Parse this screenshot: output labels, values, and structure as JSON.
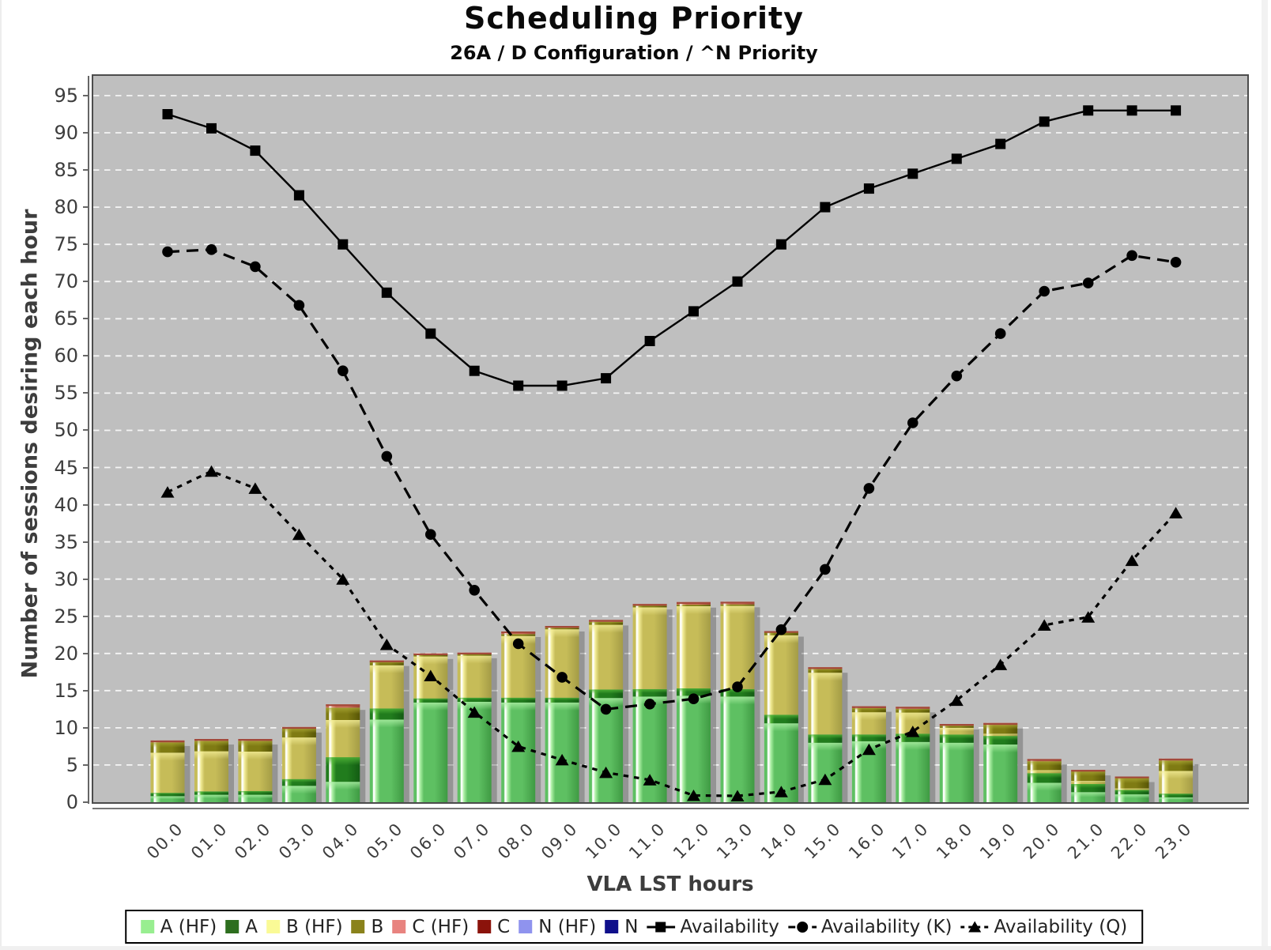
{
  "title": "Scheduling Priority",
  "subtitle": "26A / D Configuration / ^N Priority",
  "y_axis": {
    "label": "Number of sessions desiring each hour",
    "ticks": [
      "0",
      "5",
      "10",
      "15",
      "20",
      "25",
      "30",
      "35",
      "40",
      "45",
      "50",
      "55",
      "60",
      "65",
      "70",
      "75",
      "80",
      "85",
      "90",
      "95"
    ],
    "tick_step": 5,
    "range": [
      0,
      97.6
    ]
  },
  "x_axis": {
    "label": "VLA LST hours",
    "categories": [
      "00.0",
      "01.0",
      "02.0",
      "03.0",
      "04.0",
      "05.0",
      "06.0",
      "07.0",
      "08.0",
      "09.0",
      "10.0",
      "11.0",
      "12.0",
      "13.0",
      "14.0",
      "15.0",
      "16.0",
      "17.0",
      "18.0",
      "19.0",
      "20.0",
      "21.0",
      "22.0",
      "23.0"
    ]
  },
  "legend": {
    "items": [
      {
        "label": "A (HF)",
        "type": "bar",
        "color": "#98ee90"
      },
      {
        "label": "A",
        "type": "bar",
        "color": "#2d6e1e"
      },
      {
        "label": "B (HF)",
        "type": "bar",
        "color": "#fafa96"
      },
      {
        "label": "B",
        "type": "bar",
        "color": "#8a821b"
      },
      {
        "label": "C (HF)",
        "type": "bar",
        "color": "#e8837f"
      },
      {
        "label": "C",
        "type": "bar",
        "color": "#8b130b"
      },
      {
        "label": "N (HF)",
        "type": "bar",
        "color": "#8f93ee"
      },
      {
        "label": "N",
        "type": "bar",
        "color": "#0f0f8b"
      },
      {
        "label": "Availability",
        "type": "line",
        "marker": "square",
        "dash": "solid"
      },
      {
        "label": "Availability (K)",
        "type": "line",
        "marker": "circle",
        "dash": "dashed"
      },
      {
        "label": "Availability (Q)",
        "type": "line",
        "marker": "triangle",
        "dash": "dotted"
      }
    ]
  },
  "chart_data": {
    "type": "stacked-bar+line",
    "title": "Scheduling Priority",
    "subtitle": "26A / D Configuration / ^N Priority",
    "xlabel": "VLA LST hours",
    "ylabel": "Number of sessions desiring each hour",
    "ylim": [
      0,
      97.6
    ],
    "grid": {
      "on": true,
      "color": "#ffffff",
      "step": 5,
      "style": "dashed"
    },
    "plot_bg": "#bfbfbf",
    "legend_position": "bottom",
    "categories": [
      "00.0",
      "01.0",
      "02.0",
      "03.0",
      "04.0",
      "05.0",
      "06.0",
      "07.0",
      "08.0",
      "09.0",
      "10.0",
      "11.0",
      "12.0",
      "13.0",
      "14.0",
      "15.0",
      "16.0",
      "17.0",
      "18.0",
      "19.0",
      "20.0",
      "21.0",
      "22.0",
      "23.0"
    ],
    "bar_series": [
      {
        "name": "A (HF)",
        "legend_color": "#98ee90",
        "fill": {
          "base": "#5ec062",
          "light": "#aef0a6",
          "dark": "#3f9a43"
        },
        "values": [
          0.8,
          1.0,
          1.0,
          2.2,
          2.75,
          11.1,
          13.4,
          13.5,
          13.4,
          13.4,
          14.0,
          14.2,
          14.3,
          14.2,
          10.6,
          8.0,
          8.2,
          8.1,
          8.0,
          7.75,
          2.6,
          1.35,
          1.05,
          0.65
        ]
      },
      {
        "name": "A",
        "legend_color": "#2d6e1e",
        "fill": {
          "base": "#217c1d",
          "light": "#55b83a",
          "dark": "#135c13"
        },
        "values": [
          0.45,
          0.45,
          0.5,
          0.9,
          3.3,
          1.5,
          0.55,
          0.55,
          0.65,
          0.65,
          1.15,
          1.0,
          1.0,
          1.0,
          1.15,
          1.1,
          0.9,
          1.1,
          1.1,
          1.15,
          1.3,
          1.1,
          0.6,
          0.5
        ]
      },
      {
        "name": "B (HF)",
        "legend_color": "#fafa96",
        "fill": {
          "base": "#c6bc58",
          "light": "#f2ec96",
          "dark": "#a49c46"
        },
        "values": [
          5.4,
          5.4,
          5.3,
          5.6,
          5.0,
          5.8,
          5.65,
          5.65,
          8.3,
          9.2,
          8.7,
          11.0,
          11.05,
          11.2,
          10.7,
          8.3,
          3.0,
          2.85,
          0.9,
          0.3,
          0.4,
          0.4,
          0.2,
          3.05
        ]
      },
      {
        "name": "B",
        "legend_color": "#8a821b",
        "fill": {
          "base": "#7f7b13",
          "light": "#a8a533",
          "dark": "#585606"
        },
        "values": [
          1.4,
          1.4,
          1.45,
          1.2,
          1.65,
          0.45,
          0.25,
          0.2,
          0.25,
          0.2,
          0.4,
          0.25,
          0.2,
          0.2,
          0.4,
          0.5,
          0.55,
          0.5,
          0.3,
          1.2,
          1.2,
          1.3,
          1.4,
          1.4
        ]
      },
      {
        "name": "C (HF)",
        "legend_color": "#e8837f",
        "fill": {
          "base": "#cb6c59",
          "light": "#e59a86",
          "dark": "#9c4435"
        },
        "values": [
          0.25,
          0.25,
          0.25,
          0.2,
          0.45,
          0.2,
          0.15,
          0.2,
          0.35,
          0.25,
          0.25,
          0.2,
          0.35,
          0.35,
          0.15,
          0.25,
          0.25,
          0.28,
          0.22,
          0.25,
          0.3,
          0.2,
          0.2,
          0.25
        ]
      },
      {
        "name": "C",
        "legend_color": "#8b130b",
        "fill": {
          "base": "#8b130b",
          "light": "#b43f2c",
          "dark": "#5e0c06"
        },
        "values": [
          0,
          0,
          0,
          0,
          0,
          0,
          0,
          0,
          0,
          0,
          0,
          0,
          0,
          0,
          0,
          0,
          0,
          0,
          0,
          0,
          0,
          0,
          0,
          0
        ]
      },
      {
        "name": "N (HF)",
        "legend_color": "#8f93ee",
        "fill": {
          "base": "#8f93ee",
          "light": "#c0c2f8",
          "dark": "#6467c0"
        },
        "values": [
          0,
          0,
          0,
          0,
          0,
          0,
          0,
          0,
          0,
          0,
          0,
          0,
          0,
          0,
          0,
          0,
          0,
          0,
          0,
          0,
          0,
          0,
          0,
          0
        ]
      },
      {
        "name": "N",
        "legend_color": "#0f0f8b",
        "fill": {
          "base": "#0f0f8b",
          "light": "#3c3cb8",
          "dark": "#08085e"
        },
        "values": [
          0,
          0,
          0,
          0,
          0,
          0,
          0,
          0,
          0,
          0,
          0,
          0,
          0,
          0,
          0,
          0,
          0,
          0,
          0,
          0,
          0,
          0,
          0,
          0
        ]
      }
    ],
    "line_series": [
      {
        "name": "Availability",
        "marker": "square",
        "dash": "solid",
        "color": "#000000",
        "values": [
          92.5,
          90.6,
          87.6,
          81.6,
          75.0,
          68.5,
          63.0,
          58.0,
          56.0,
          56.0,
          57.0,
          62.0,
          66.0,
          70.0,
          75.0,
          80.0,
          82.5,
          84.5,
          86.5,
          88.5,
          91.5,
          93.0,
          93.0,
          93.0
        ]
      },
      {
        "name": "Availability (K)",
        "marker": "circle",
        "dash": "dashed",
        "color": "#000000",
        "values": [
          74.0,
          74.3,
          72.0,
          66.8,
          58.0,
          46.5,
          36.0,
          28.5,
          21.3,
          16.8,
          12.5,
          13.2,
          13.9,
          15.5,
          23.2,
          31.3,
          42.2,
          51.0,
          57.3,
          63.0,
          68.7,
          69.8,
          73.5,
          72.6
        ]
      },
      {
        "name": "Availability (Q)",
        "marker": "triangle",
        "dash": "dotted",
        "color": "#000000",
        "values": [
          41.7,
          44.5,
          42.2,
          36.0,
          30.0,
          21.2,
          17.0,
          12.1,
          7.5,
          5.7,
          4.0,
          3.0,
          0.9,
          0.85,
          1.4,
          3.05,
          7.1,
          9.5,
          13.7,
          18.5,
          23.8,
          24.9,
          32.5,
          38.9
        ]
      }
    ]
  }
}
